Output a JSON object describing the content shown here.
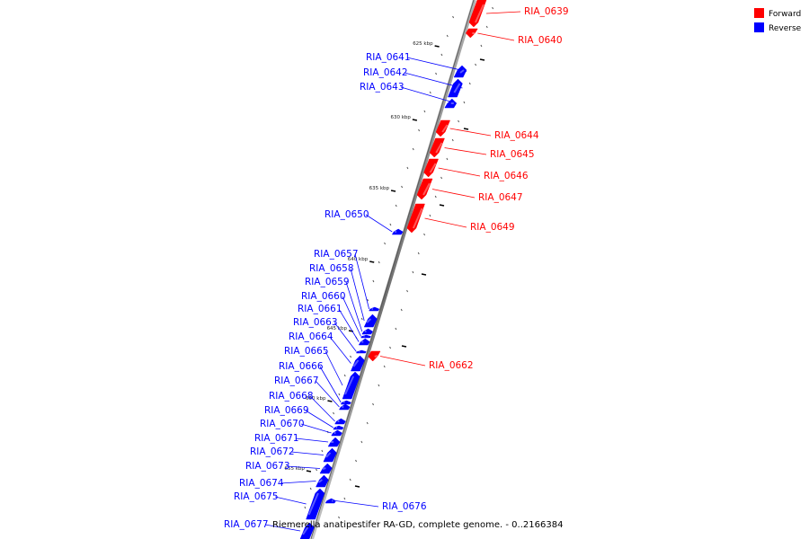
{
  "caption": "Riemerella anatipestifer RA-GD, complete genome. - 0..2166384",
  "legend": [
    {
      "label": "Forward",
      "color": "#ff0000"
    },
    {
      "label": "Reverse",
      "color": "#0000ff"
    }
  ],
  "colors": {
    "forward": "#ff0000",
    "reverse": "#0000ff",
    "backbone": "#808080"
  },
  "ticks": [
    "625 kbp",
    "630 kbp",
    "635 kbp",
    "640 kbp",
    "645 kbp",
    "650 kbp",
    "655 kbp"
  ],
  "genes": [
    {
      "name": "RIA_0639",
      "strand": "forward"
    },
    {
      "name": "RIA_0640",
      "strand": "forward"
    },
    {
      "name": "RIA_0641",
      "strand": "reverse"
    },
    {
      "name": "RIA_0642",
      "strand": "reverse"
    },
    {
      "name": "RIA_0643",
      "strand": "reverse"
    },
    {
      "name": "RIA_0644",
      "strand": "forward"
    },
    {
      "name": "RIA_0645",
      "strand": "forward"
    },
    {
      "name": "RIA_0646",
      "strand": "forward"
    },
    {
      "name": "RIA_0647",
      "strand": "forward"
    },
    {
      "name": "RIA_0649",
      "strand": "forward"
    },
    {
      "name": "RIA_0650",
      "strand": "reverse"
    },
    {
      "name": "RIA_0657",
      "strand": "reverse"
    },
    {
      "name": "RIA_0658",
      "strand": "reverse"
    },
    {
      "name": "RIA_0659",
      "strand": "reverse"
    },
    {
      "name": "RIA_0660",
      "strand": "reverse"
    },
    {
      "name": "RIA_0661",
      "strand": "reverse"
    },
    {
      "name": "RIA_0663",
      "strand": "reverse"
    },
    {
      "name": "RIA_0664",
      "strand": "reverse"
    },
    {
      "name": "RIA_0665",
      "strand": "reverse"
    },
    {
      "name": "RIA_0666",
      "strand": "reverse"
    },
    {
      "name": "RIA_0667",
      "strand": "reverse"
    },
    {
      "name": "RIA_0668",
      "strand": "reverse"
    },
    {
      "name": "RIA_0669",
      "strand": "reverse"
    },
    {
      "name": "RIA_0670",
      "strand": "reverse"
    },
    {
      "name": "RIA_0671",
      "strand": "reverse"
    },
    {
      "name": "RIA_0672",
      "strand": "reverse"
    },
    {
      "name": "RIA_0673",
      "strand": "reverse"
    },
    {
      "name": "RIA_0674",
      "strand": "reverse"
    },
    {
      "name": "RIA_0675",
      "strand": "reverse"
    },
    {
      "name": "RIA_0662",
      "strand": "forward"
    },
    {
      "name": "RIA_0676",
      "strand": "reverse"
    },
    {
      "name": "RIA_0677",
      "strand": "reverse"
    }
  ]
}
